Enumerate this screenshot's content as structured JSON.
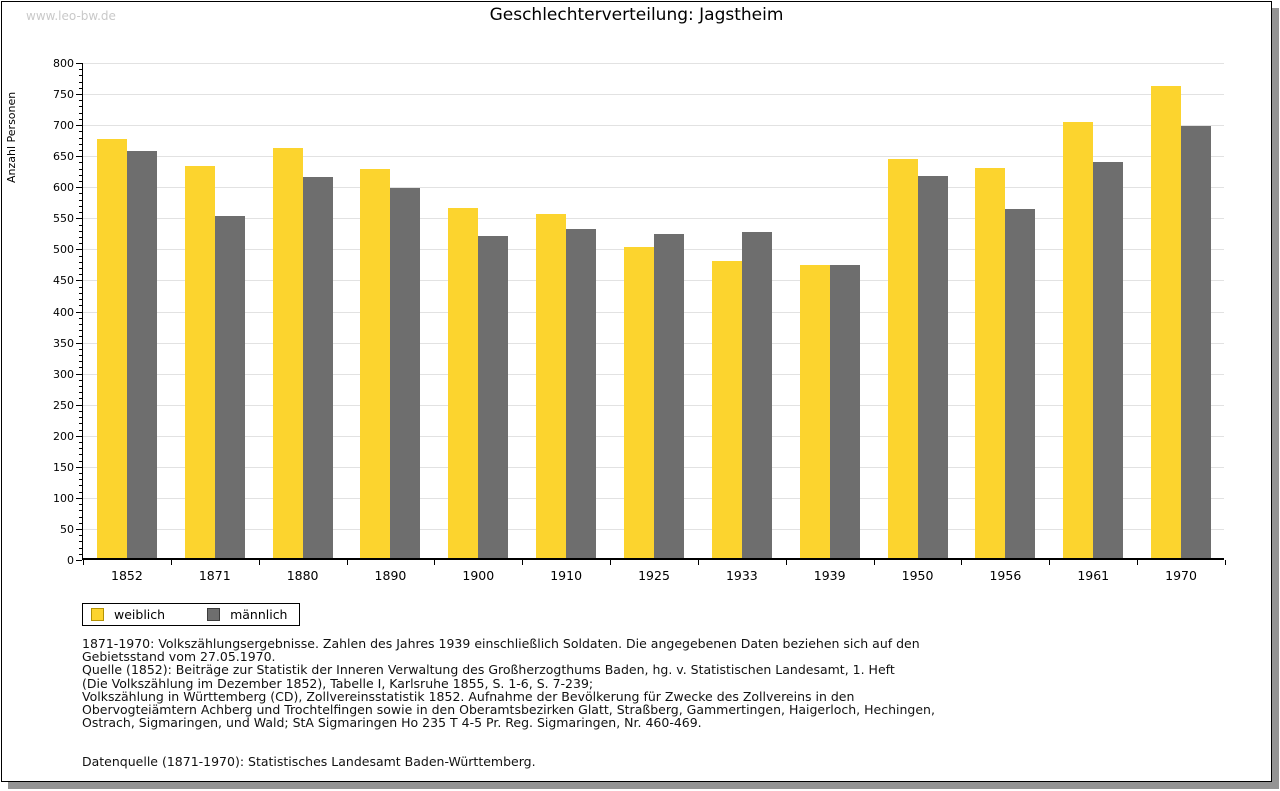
{
  "watermark": "www.leo-bw.de",
  "title": "Geschlechterverteilung: Jagstheim",
  "chart_data": {
    "type": "bar",
    "title": "Geschlechterverteilung: Jagstheim",
    "xlabel": "",
    "ylabel": "Anzahl Personen",
    "ylim": [
      0,
      800
    ],
    "ytick_step": 50,
    "ytick_minor_step": 10,
    "grid": true,
    "legend_position": "bottom-left",
    "categories": [
      "1852",
      "1871",
      "1880",
      "1890",
      "1900",
      "1910",
      "1925",
      "1933",
      "1939",
      "1950",
      "1956",
      "1961",
      "1970"
    ],
    "series": [
      {
        "name": "weiblich",
        "color": "#fcd42e",
        "border": "#b39204",
        "values": [
          675,
          631,
          660,
          626,
          563,
          554,
          500,
          478,
          472,
          643,
          628,
          702,
          759
        ]
      },
      {
        "name": "männlich",
        "color": "#6e6e6e",
        "border": "#3c3c3c",
        "values": [
          655,
          550,
          614,
          596,
          518,
          530,
          521,
          525,
          471,
          615,
          562,
          637,
          695
        ]
      }
    ]
  },
  "legend": {
    "items": [
      {
        "label": "weiblich",
        "color": "#fcd42e",
        "border": "#b39204"
      },
      {
        "label": "männlich",
        "color": "#6e6e6e",
        "border": "#3c3c3c"
      }
    ]
  },
  "footnotes": {
    "lines": [
      "1871-1970: Volkszählungsergebnisse. Zahlen des Jahres 1939 einschließlich Soldaten. Die angegebenen Daten beziehen sich auf den",
      "Gebietsstand vom 27.05.1970.",
      "Quelle (1852): Beiträge zur Statistik der Inneren Verwaltung des Großherzogthums Baden, hg. v. Statistischen Landesamt, 1. Heft",
      "(Die Volkszählung im Dezember 1852), Tabelle I, Karlsruhe 1855, S. 1-6, S. 7-239;",
      "Volkszählung in Württemberg (CD), Zollvereinsstatistik 1852. Aufnahme der Bevölkerung für Zwecke des Zollvereins in den",
      "Obervogteiämtern Achberg und Trochtelfingen sowie in den Oberamtsbezirken Glatt, Straßberg, Gammertingen, Haigerloch, Hechingen,",
      "Ostrach, Sigmaringen, und Wald; StA Sigmaringen Ho 235 T 4-5 Pr. Reg. Sigmaringen, Nr. 460-469."
    ],
    "datasource": "Datenquelle (1871-1970): Statistisches Landesamt Baden-Württemberg."
  }
}
